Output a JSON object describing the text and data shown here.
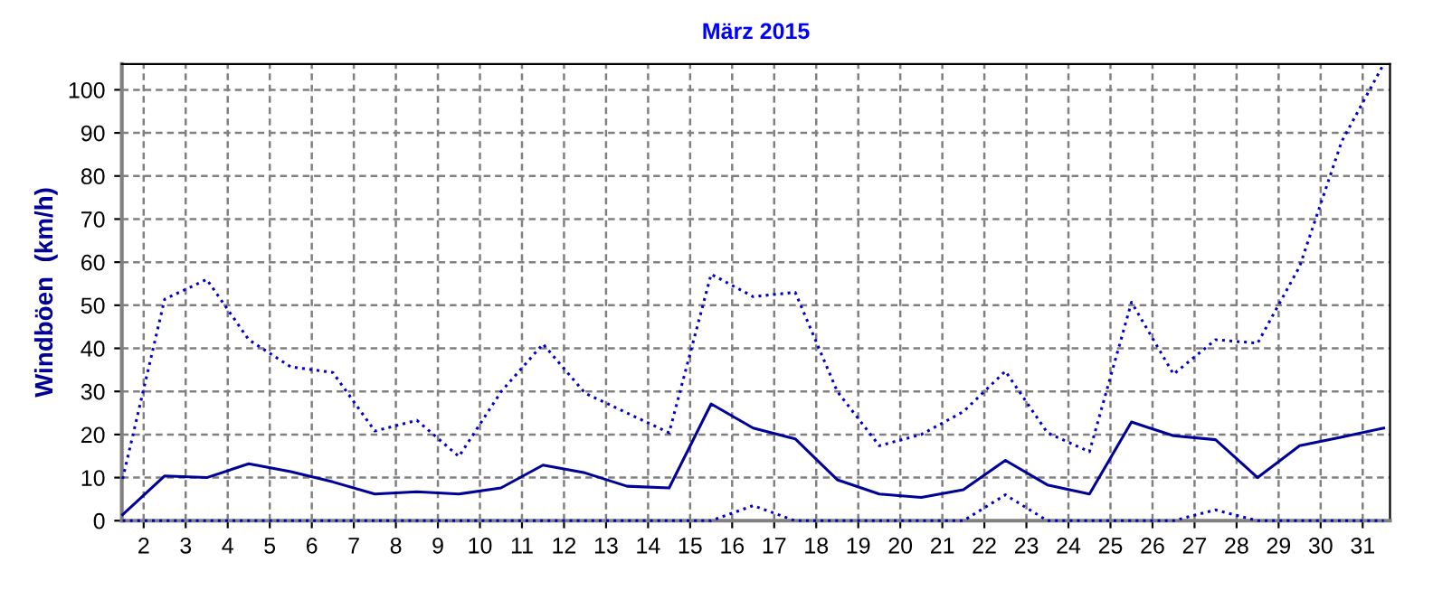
{
  "chart_data": {
    "type": "line",
    "title": "März 2015",
    "ylabel": "Windböen  (km/h)",
    "x": [
      1.5,
      2.5,
      3.5,
      4.5,
      5.5,
      6.5,
      7.5,
      8.5,
      9.5,
      10.5,
      11.5,
      12.5,
      13.5,
      14.5,
      15.5,
      16.5,
      17.5,
      18.5,
      19.5,
      20.5,
      21.5,
      22.5,
      23.5,
      24.5,
      25.5,
      26.5,
      27.5,
      28.5,
      29.5,
      30.5,
      31.5
    ],
    "series": [
      {
        "color": "#0000cc",
        "line_style": "dotted",
        "values": [
          9.7,
          51.4,
          56,
          42,
          35.7,
          34.4,
          20.8,
          23.3,
          14.9,
          29.9,
          41,
          29.6,
          25,
          20.4,
          57.2,
          52,
          53,
          30,
          17.4,
          20,
          25.3,
          34.7,
          20.4,
          16,
          50.7,
          34,
          42,
          41.2,
          59,
          88,
          106
        ]
      },
      {
        "color": "#000099",
        "line_style": "solid",
        "values": [
          1.4,
          10.4,
          10,
          13.2,
          11.4,
          9,
          6.2,
          6.7,
          6.2,
          7.6,
          12.9,
          11.1,
          8,
          7.6,
          27.1,
          21.5,
          19,
          9.5,
          6.2,
          5.4,
          7.2,
          14,
          8.3,
          6.2,
          22.9,
          19.7,
          18.8,
          10,
          17.4,
          19.4,
          21.5
        ]
      },
      {
        "color": "#0000cc",
        "line_style": "dotted",
        "values": [
          0,
          0,
          0,
          0,
          0,
          0,
          0,
          0,
          0,
          0,
          0,
          0,
          0,
          0,
          0,
          3.5,
          0,
          0,
          0,
          0,
          0,
          6,
          0,
          0,
          0,
          0,
          2.5,
          0,
          0,
          0,
          0
        ]
      }
    ],
    "xlim": [
      1.48,
      31.65
    ],
    "xticks": [
      2,
      3,
      4,
      5,
      6,
      7,
      8,
      9,
      10,
      11,
      12,
      13,
      14,
      15,
      16,
      17,
      18,
      19,
      20,
      21,
      22,
      23,
      24,
      25,
      26,
      27,
      28,
      29,
      30,
      31
    ],
    "ylim": [
      0,
      106
    ],
    "yticks": [
      0,
      10,
      20,
      30,
      40,
      50,
      60,
      70,
      80,
      90,
      100
    ],
    "grid": true,
    "marker": "none"
  }
}
